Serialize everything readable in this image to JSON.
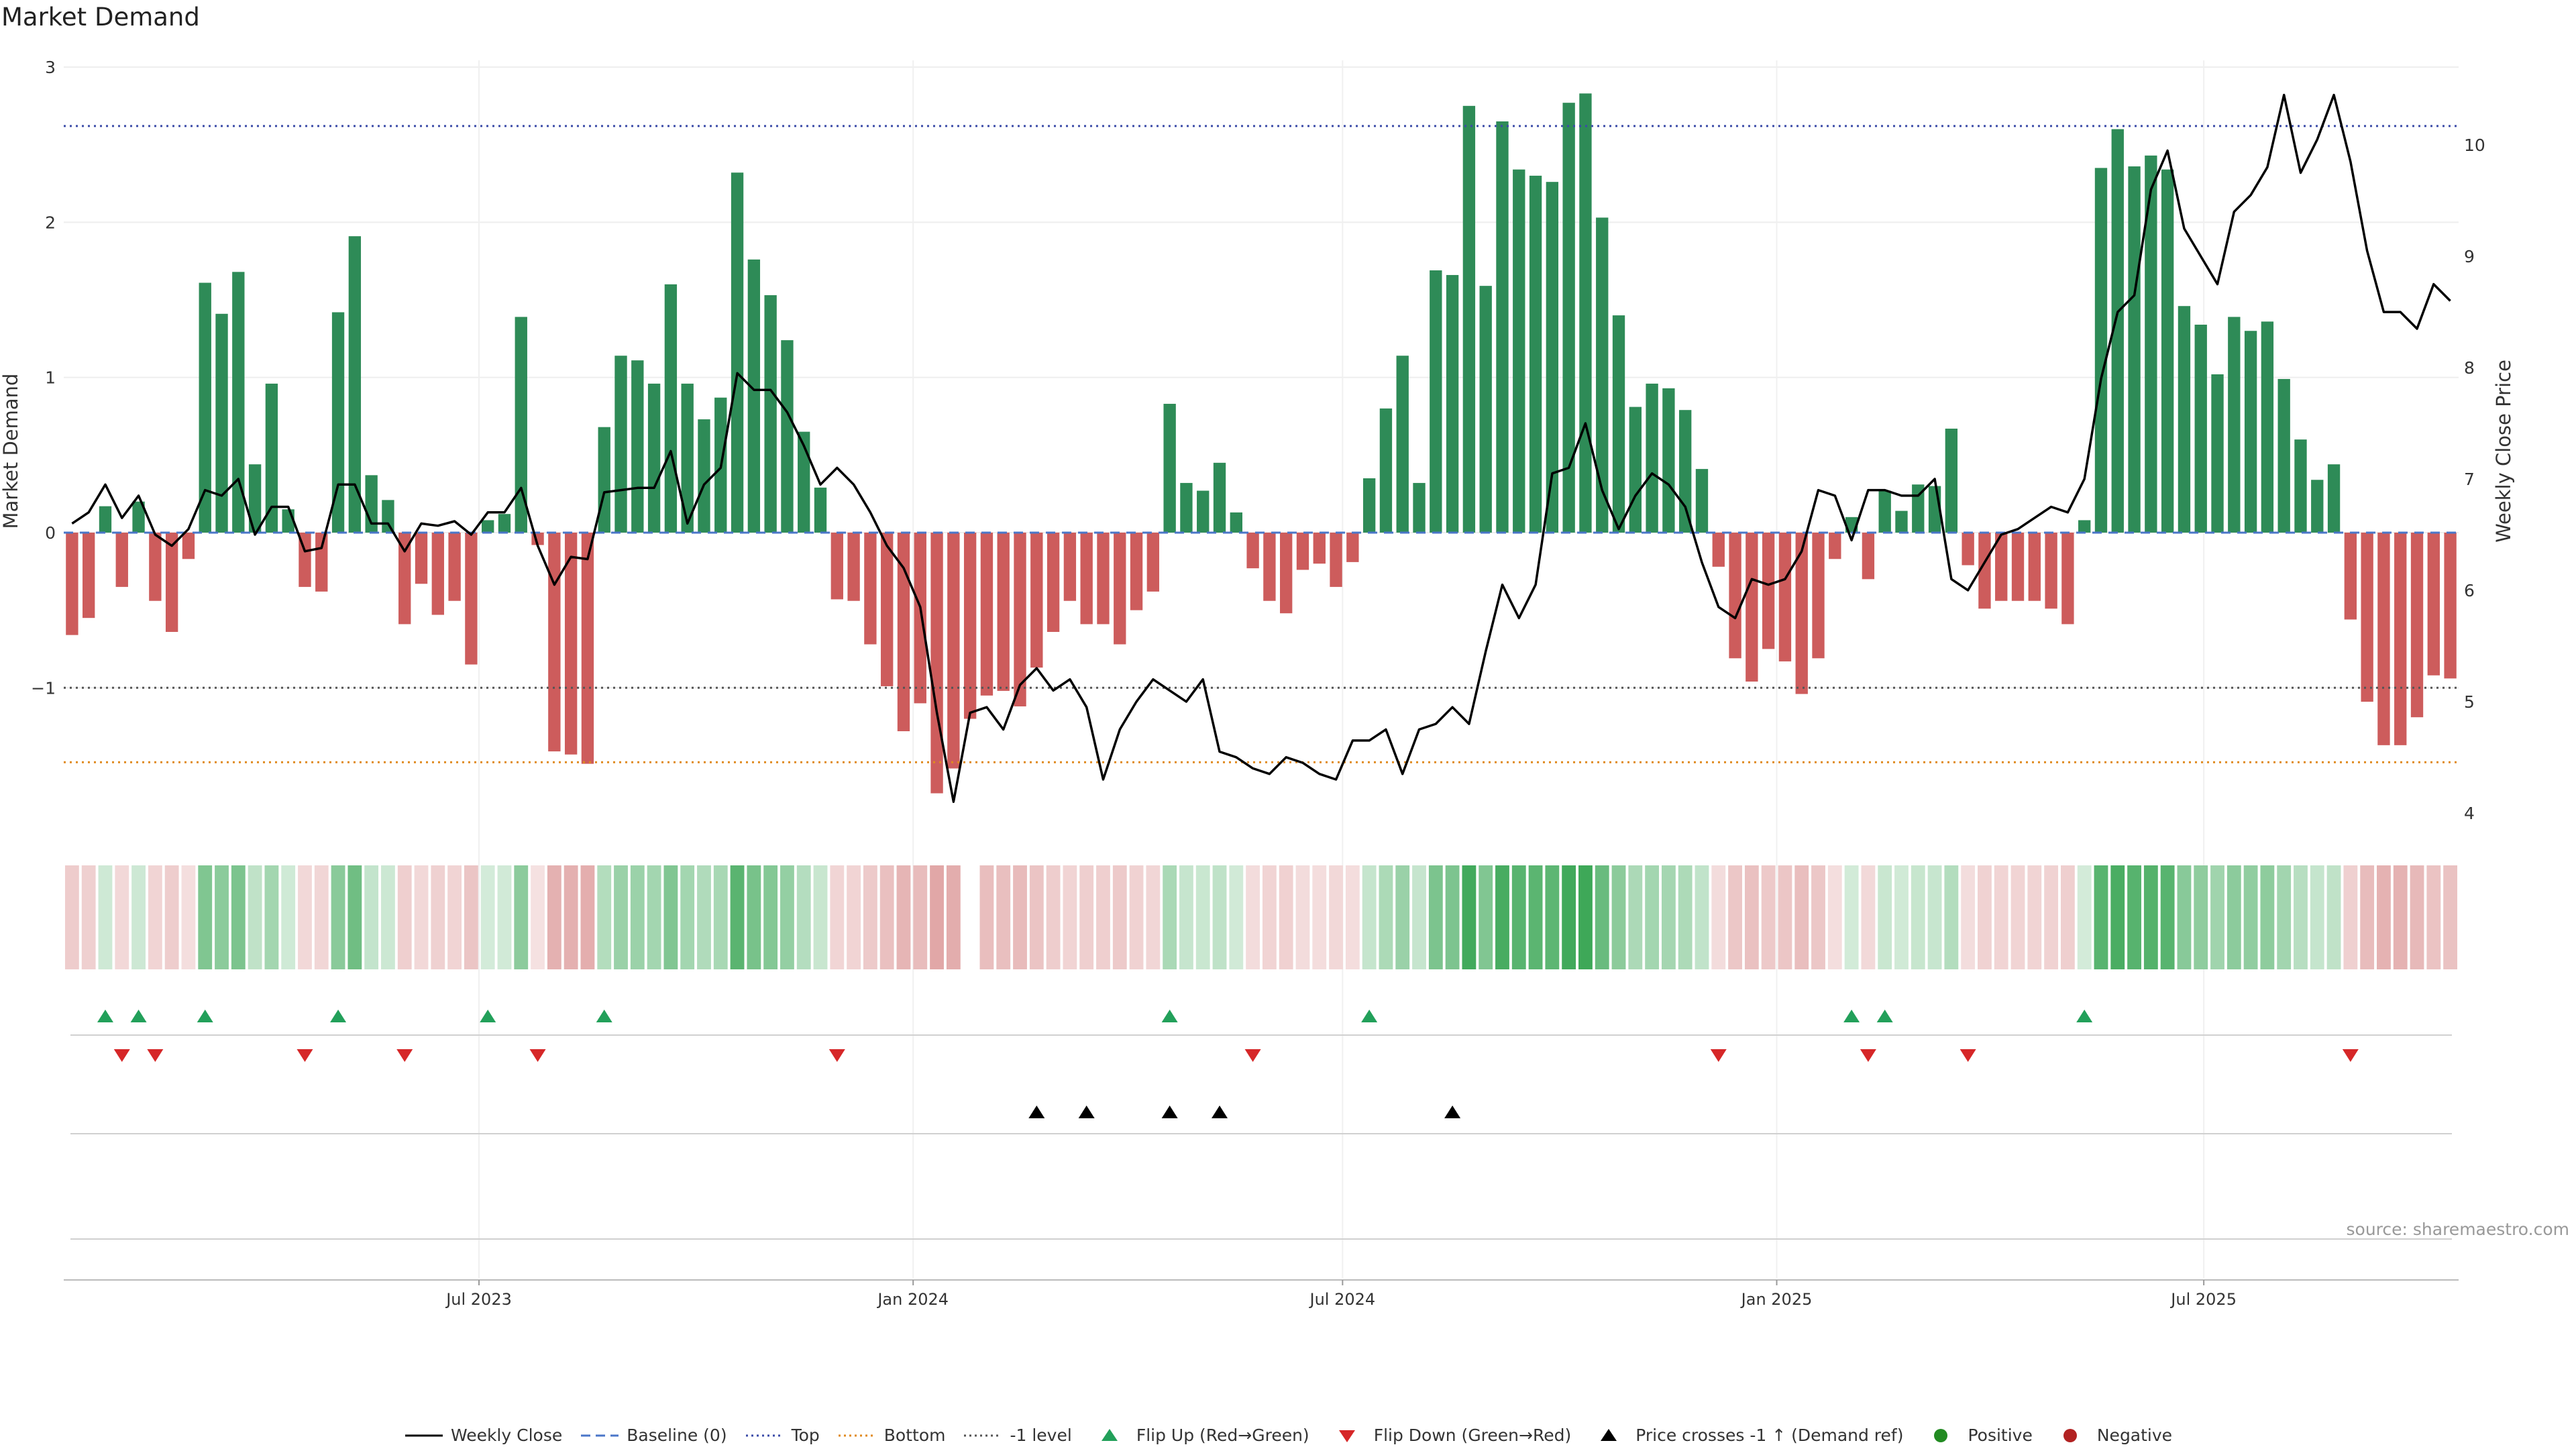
{
  "title": "Market Demand",
  "source": "source: sharemaestro.com",
  "colors": {
    "positive": "#2e8b57",
    "negative": "#cd5c5c",
    "top_line": "#3b4ba8",
    "bottom_line": "#e08a1e",
    "minus_one_line": "#555555",
    "baseline": "#4a76c8",
    "flip_up": "#22a05a",
    "flip_down": "#d62728",
    "cross": "#000000",
    "positive_dot": "#228b22",
    "negative_dot": "#b22222"
  },
  "legend": [
    {
      "key": "weekly_close",
      "label": "Weekly Close",
      "marker": "line"
    },
    {
      "key": "baseline",
      "label": "Baseline (0)",
      "marker": "dash"
    },
    {
      "key": "top",
      "label": "Top",
      "marker": "dot-blue"
    },
    {
      "key": "bottom",
      "label": "Bottom",
      "marker": "dot-orange"
    },
    {
      "key": "minus_one",
      "label": "-1 level",
      "marker": "dot-gray"
    },
    {
      "key": "flip_up",
      "label": "Flip Up (Red→Green)",
      "marker": "tri-up-green"
    },
    {
      "key": "flip_down",
      "label": "Flip Down (Green→Red)",
      "marker": "tri-down-red"
    },
    {
      "key": "cross",
      "label": "Price crosses -1 ↑ (Demand ref)",
      "marker": "tri-up-black"
    },
    {
      "key": "positive",
      "label": "Positive",
      "marker": "circle-green"
    },
    {
      "key": "negative",
      "label": "Negative",
      "marker": "circle-red"
    }
  ],
  "chart_data": {
    "type": "bar",
    "title": "Market Demand",
    "ylabel": "Market Demand",
    "y2label": "Weekly Close Price",
    "ylim": [
      -1.95,
      3.0
    ],
    "y2lim": [
      3.8,
      10.7
    ],
    "yticks": [
      "3",
      "2",
      "1",
      "0",
      "−1"
    ],
    "ytick_values": [
      3,
      2,
      1,
      0,
      -1
    ],
    "y2ticks": [
      "10",
      "9",
      "8",
      "7",
      "6",
      "5",
      "4"
    ],
    "y2tick_values": [
      10,
      9,
      8,
      7,
      6,
      5,
      4
    ],
    "x_start": "2023-01-06",
    "x_end": "2025-10-17",
    "xticks": [
      {
        "label": "Jul 2023",
        "date": "2023-07-01"
      },
      {
        "label": "Jan 2024",
        "date": "2024-01-01"
      },
      {
        "label": "Jul 2024",
        "date": "2024-07-01"
      },
      {
        "label": "Jan 2025",
        "date": "2025-01-01"
      },
      {
        "label": "Jul 2025",
        "date": "2025-07-01"
      }
    ],
    "levels": {
      "top": 2.62,
      "bottom": -1.48,
      "minus_one": -1.0,
      "baseline": 0
    },
    "series": [
      {
        "name": "Market Demand",
        "values": [
          -0.66,
          -0.55,
          0.17,
          -0.35,
          0.2,
          -0.44,
          -0.64,
          -0.17,
          1.61,
          1.41,
          1.68,
          0.44,
          0.96,
          0.15,
          -0.35,
          -0.38,
          1.42,
          1.91,
          0.37,
          0.21,
          -0.59,
          -0.33,
          -0.53,
          -0.44,
          -0.85,
          0.08,
          0.12,
          1.39,
          -0.08,
          -1.41,
          -1.43,
          -1.49,
          0.68,
          1.14,
          1.11,
          0.96,
          1.6,
          0.96,
          0.73,
          0.87,
          2.32,
          1.76,
          1.53,
          1.24,
          0.65,
          0.29,
          -0.43,
          -0.44,
          -0.72,
          -0.99,
          -1.28,
          -1.1,
          -1.68,
          -1.52,
          -1.2,
          -1.05,
          -1.02,
          -1.12,
          -0.87,
          -0.64,
          -0.44,
          -0.59,
          -0.59,
          -0.72,
          -0.5,
          -0.38,
          0.83,
          0.32,
          0.27,
          0.45,
          0.13,
          -0.23,
          -0.44,
          -0.52,
          -0.24,
          -0.2,
          -0.35,
          -0.19,
          0.35,
          0.8,
          1.14,
          0.32,
          1.69,
          1.66,
          2.75,
          1.59,
          2.65,
          2.34,
          2.3,
          2.26,
          2.77,
          2.83,
          2.03,
          1.4,
          0.81,
          0.96,
          0.93,
          0.79,
          0.41,
          -0.22,
          -0.81,
          -0.96,
          -0.75,
          -0.83,
          -1.04,
          -0.81,
          -0.17,
          0.1,
          -0.3,
          0.27,
          0.14,
          0.31,
          0.3,
          0.67,
          -0.21,
          -0.49,
          -0.44,
          -0.44,
          -0.44,
          -0.49,
          -0.59,
          0.08,
          2.35,
          2.6,
          2.36,
          2.43,
          2.34,
          1.46,
          1.34,
          1.02,
          1.39,
          1.3,
          1.36,
          0.99,
          0.6,
          0.34,
          0.44,
          -0.56,
          -1.09,
          -1.37,
          -1.37,
          -1.19,
          -0.92,
          -0.94
        ]
      },
      {
        "name": "Weekly Close",
        "axis": "right",
        "values": [
          6.6,
          6.7,
          6.95,
          6.65,
          6.85,
          6.5,
          6.4,
          6.55,
          6.9,
          6.85,
          7.0,
          6.5,
          6.75,
          6.75,
          6.35,
          6.38,
          6.95,
          6.95,
          6.6,
          6.6,
          6.35,
          6.6,
          6.58,
          6.62,
          6.5,
          6.7,
          6.7,
          6.92,
          6.4,
          6.05,
          6.3,
          6.28,
          6.88,
          6.9,
          6.92,
          6.92,
          7.25,
          6.6,
          6.95,
          7.1,
          7.95,
          7.8,
          7.8,
          7.6,
          7.3,
          6.95,
          7.1,
          6.95,
          6.7,
          6.4,
          6.2,
          5.85,
          4.9,
          4.1,
          4.9,
          4.95,
          4.75,
          5.15,
          5.3,
          5.1,
          5.2,
          4.95,
          4.3,
          4.75,
          5.0,
          5.2,
          5.1,
          5.0,
          5.2,
          4.55,
          4.5,
          4.4,
          4.35,
          4.5,
          4.45,
          4.35,
          4.3,
          4.65,
          4.65,
          4.75,
          4.35,
          4.75,
          4.8,
          4.95,
          4.8,
          5.45,
          6.05,
          5.75,
          6.05,
          7.05,
          7.1,
          7.5,
          6.9,
          6.55,
          6.85,
          7.05,
          6.95,
          6.75,
          6.25,
          5.85,
          5.75,
          6.1,
          6.05,
          6.1,
          6.35,
          6.9,
          6.85,
          6.45,
          6.9,
          6.9,
          6.85,
          6.85,
          7.0,
          6.1,
          6.0,
          6.25,
          6.5,
          6.55,
          6.65,
          6.75,
          6.7,
          7.0,
          7.9,
          8.5,
          8.65,
          9.6,
          9.95,
          9.25,
          9.0,
          8.75,
          9.4,
          9.55,
          9.8,
          10.45,
          9.75,
          10.05,
          10.45,
          9.85,
          9.05,
          8.5,
          8.5,
          8.35,
          8.75,
          8.6
        ]
      }
    ],
    "flip_up_weeks": [
      2,
      4,
      8,
      16,
      25,
      32,
      66,
      78,
      107,
      109,
      121
    ],
    "flip_down_weeks": [
      3,
      5,
      14,
      20,
      28,
      46,
      71,
      99,
      108,
      114,
      137
    ],
    "price_cross_weeks": [
      58,
      61,
      66,
      69,
      83
    ]
  }
}
